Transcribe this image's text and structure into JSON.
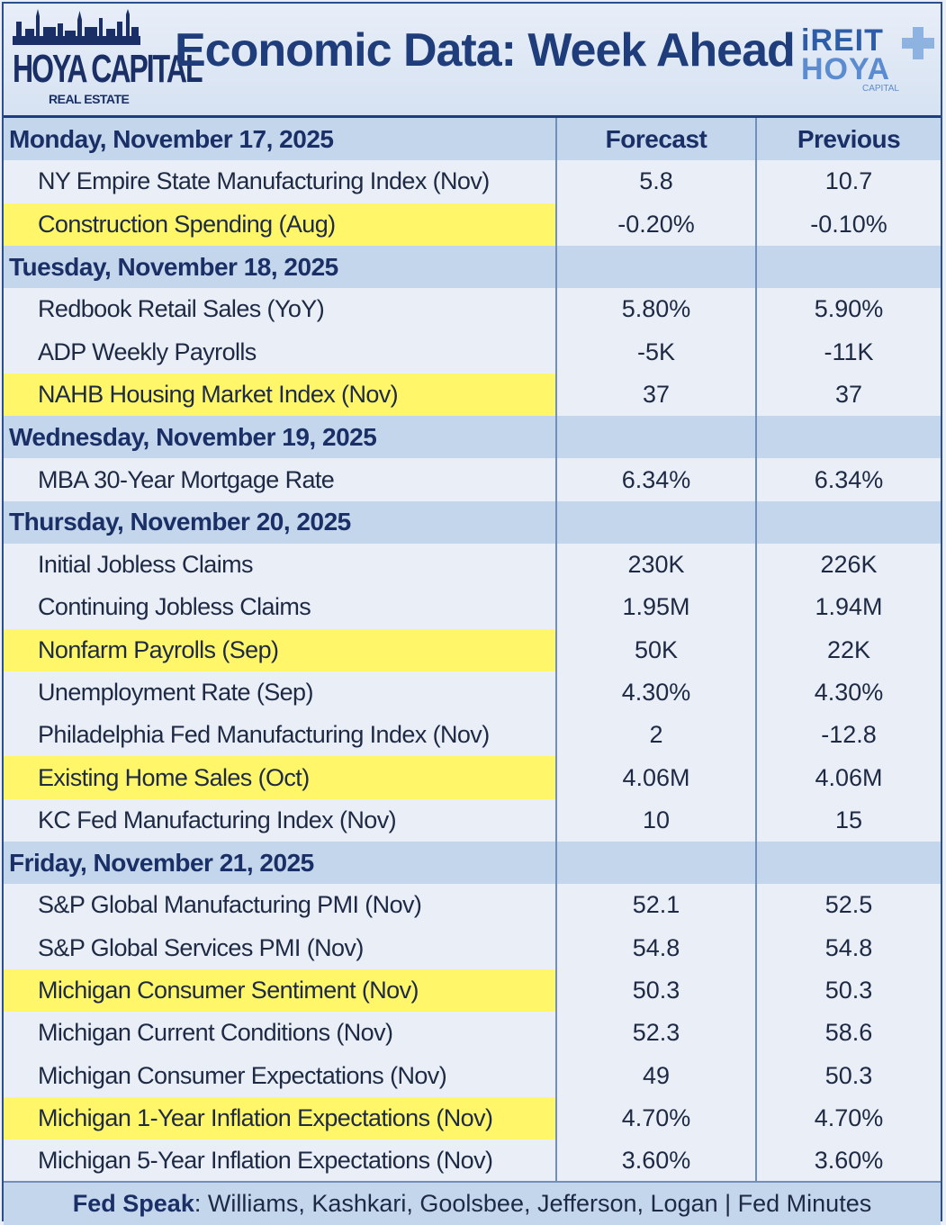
{
  "header": {
    "title": "Economic Data: Week Ahead",
    "left_logo": {
      "brand": "HOYA CAPITAL",
      "sub": "REAL ESTATE"
    },
    "right_logo": {
      "line1": "iREIT",
      "line2": "HOYA",
      "line3": "CAPITAL"
    }
  },
  "columns": {
    "forecast": "Forecast",
    "previous": "Previous"
  },
  "days": [
    {
      "label": "Monday, November 17, 2025",
      "show_headers": true,
      "items": [
        {
          "name": "NY Empire State Manufacturing Index (Nov)",
          "forecast": "5.8",
          "previous": "10.7",
          "highlight": false
        },
        {
          "name": "Construction Spending (Aug)",
          "forecast": "-0.20%",
          "previous": "-0.10%",
          "highlight": true
        }
      ]
    },
    {
      "label": "Tuesday, November 18, 2025",
      "show_headers": false,
      "items": [
        {
          "name": "Redbook Retail Sales (YoY)",
          "forecast": "5.80%",
          "previous": "5.90%",
          "highlight": false
        },
        {
          "name": "ADP Weekly Payrolls",
          "forecast": "-5K",
          "previous": "-11K",
          "highlight": false
        },
        {
          "name": "NAHB Housing Market Index (Nov)",
          "forecast": "37",
          "previous": "37",
          "highlight": true
        }
      ]
    },
    {
      "label": "Wednesday, November 19, 2025",
      "show_headers": false,
      "items": [
        {
          "name": "MBA 30-Year Mortgage Rate",
          "forecast": "6.34%",
          "previous": "6.34%",
          "highlight": false
        }
      ]
    },
    {
      "label": "Thursday, November 20, 2025",
      "show_headers": false,
      "items": [
        {
          "name": "Initial Jobless Claims",
          "forecast": "230K",
          "previous": "226K",
          "highlight": false
        },
        {
          "name": "Continuing Jobless Claims",
          "forecast": "1.95M",
          "previous": "1.94M",
          "highlight": false
        },
        {
          "name": "Nonfarm Payrolls (Sep)",
          "forecast": "50K",
          "previous": "22K",
          "highlight": true
        },
        {
          "name": "Unemployment Rate (Sep)",
          "forecast": "4.30%",
          "previous": "4.30%",
          "highlight": false
        },
        {
          "name": "Philadelphia Fed Manufacturing Index (Nov)",
          "forecast": "2",
          "previous": "-12.8",
          "highlight": false
        },
        {
          "name": "Existing Home Sales (Oct)",
          "forecast": "4.06M",
          "previous": "4.06M",
          "highlight": true
        },
        {
          "name": "KC Fed Manufacturing Index (Nov)",
          "forecast": "10",
          "previous": "15",
          "highlight": false
        }
      ]
    },
    {
      "label": "Friday, November 21, 2025",
      "show_headers": false,
      "items": [
        {
          "name": "S&P Global Manufacturing PMI (Nov)",
          "forecast": "52.1",
          "previous": "52.5",
          "highlight": false
        },
        {
          "name": "S&P Global Services PMI (Nov)",
          "forecast": "54.8",
          "previous": "54.8",
          "highlight": false
        },
        {
          "name": "Michigan Consumer Sentiment (Nov)",
          "forecast": "50.3",
          "previous": "50.3",
          "highlight": true
        },
        {
          "name": "Michigan Current Conditions (Nov)",
          "forecast": "52.3",
          "previous": "58.6",
          "highlight": false
        },
        {
          "name": "Michigan Consumer Expectations (Nov)",
          "forecast": "49",
          "previous": "50.3",
          "highlight": false
        },
        {
          "name": "Michigan 1-Year Inflation Expectations (Nov)",
          "forecast": "4.70%",
          "previous": "4.70%",
          "highlight": true
        },
        {
          "name": "Michigan 5-Year Inflation Expectations (Nov)",
          "forecast": "3.60%",
          "previous": "3.60%",
          "highlight": false
        }
      ]
    }
  ],
  "footer": {
    "label": "Fed Speak",
    "text": ": Williams, Kashkari, Goolsbee, Jefferson, Logan | Fed Minutes"
  },
  "colors": {
    "navy": "#1f3d7a",
    "day_row": "#c4d6ec",
    "highlight": "#fff66a",
    "background": "#e9eef7"
  }
}
